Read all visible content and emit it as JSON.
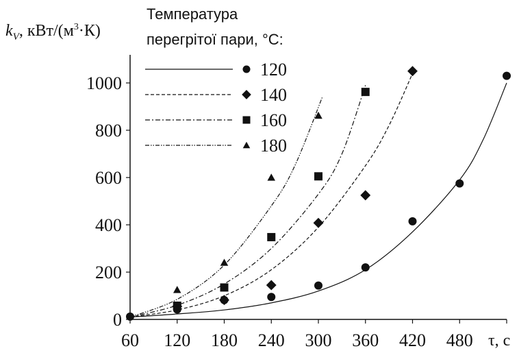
{
  "chart_data": {
    "type": "scatter",
    "ylabel_parts": {
      "k": "k",
      "sub": "V",
      "rest_prefix": ", кВт/(м",
      "sup": "3",
      "rest_suffix": "·К)"
    },
    "xlabel": "τ, с",
    "legend_title_lines": [
      "Температура",
      "перегрітої пари, °С:"
    ],
    "x_ticks": [
      "60",
      "120",
      "180",
      "240",
      "300",
      "360",
      "420",
      "480"
    ],
    "y_ticks": [
      "0",
      "200",
      "400",
      "600",
      "800",
      "1000"
    ],
    "xlim": [
      60,
      540
    ],
    "ylim": [
      0,
      1100
    ],
    "grid": false,
    "legend_position": "top-left",
    "series": [
      {
        "name": "120",
        "marker": "circle",
        "line_style": "solid",
        "points": [
          [
            60,
            12
          ],
          [
            120,
            42
          ],
          [
            180,
            82
          ],
          [
            240,
            95
          ],
          [
            300,
            143
          ],
          [
            360,
            220
          ],
          [
            420,
            415
          ],
          [
            480,
            575
          ],
          [
            540,
            1030
          ]
        ],
        "fit_points": [
          [
            60,
            10
          ],
          [
            120,
            23
          ],
          [
            180,
            40
          ],
          [
            240,
            70
          ],
          [
            300,
            120
          ],
          [
            360,
            210
          ],
          [
            420,
            370
          ],
          [
            480,
            590
          ],
          [
            510,
            760
          ],
          [
            540,
            1000
          ]
        ]
      },
      {
        "name": "140",
        "marker": "diamond",
        "line_style": "dashed",
        "points": [
          [
            120,
            55
          ],
          [
            180,
            82
          ],
          [
            240,
            145
          ],
          [
            300,
            408
          ],
          [
            360,
            525
          ],
          [
            420,
            1050
          ]
        ],
        "fit_points": [
          [
            60,
            10
          ],
          [
            120,
            40
          ],
          [
            180,
            100
          ],
          [
            240,
            210
          ],
          [
            300,
            390
          ],
          [
            360,
            650
          ],
          [
            390,
            820
          ],
          [
            420,
            1040
          ]
        ]
      },
      {
        "name": "160",
        "marker": "square",
        "line_style": "dash-dot",
        "points": [
          [
            120,
            58
          ],
          [
            180,
            135
          ],
          [
            240,
            348
          ],
          [
            300,
            605
          ],
          [
            360,
            962
          ]
        ],
        "fit_points": [
          [
            60,
            10
          ],
          [
            120,
            60
          ],
          [
            180,
            150
          ],
          [
            240,
            300
          ],
          [
            300,
            530
          ],
          [
            330,
            700
          ],
          [
            360,
            990
          ]
        ]
      },
      {
        "name": "180",
        "marker": "triangle",
        "line_style": "dash-dot-dot",
        "points": [
          [
            120,
            125
          ],
          [
            180,
            240
          ],
          [
            240,
            600
          ],
          [
            300,
            862
          ]
        ],
        "fit_points": [
          [
            60,
            10
          ],
          [
            120,
            85
          ],
          [
            180,
            230
          ],
          [
            240,
            480
          ],
          [
            270,
            650
          ],
          [
            305,
            940
          ]
        ]
      }
    ]
  }
}
